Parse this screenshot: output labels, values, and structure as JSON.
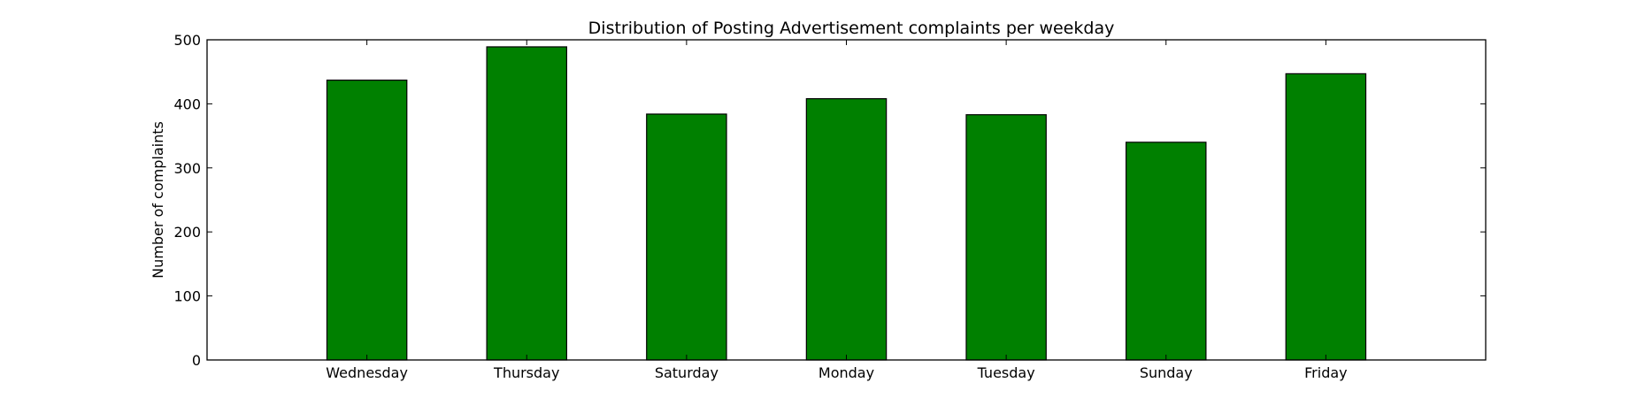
{
  "chart_data": {
    "type": "bar",
    "title": "Distribution of  Posting Advertisement complaints per weekday",
    "xlabel": "",
    "ylabel": "Number of complaints",
    "categories": [
      "Wednesday",
      "Thursday",
      "Saturday",
      "Monday",
      "Tuesday",
      "Sunday",
      "Friday"
    ],
    "values": [
      437,
      489,
      384,
      408,
      383,
      340,
      447
    ],
    "ylim": [
      0,
      500
    ],
    "yticks": [
      "0",
      "100",
      "200",
      "300",
      "400",
      "500"
    ],
    "grid": false,
    "legend": "none",
    "colors": {
      "bar_fill": "#008000",
      "bar_stroke": "#000000",
      "axes": "#000000"
    }
  }
}
